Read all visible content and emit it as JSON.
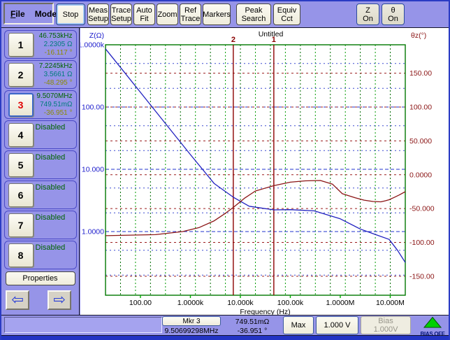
{
  "menubar": {
    "file": "File",
    "mode": "Mode"
  },
  "toolbar": {
    "buttons": [
      {
        "id": "stop",
        "lines": [
          "Stop"
        ],
        "x": 78,
        "w": 42,
        "focused": true
      },
      {
        "id": "meas-setup",
        "lines": [
          "Meas",
          "Setup"
        ],
        "x": 123,
        "w": 31
      },
      {
        "id": "trace-setup",
        "lines": [
          "Trace",
          "Setup"
        ],
        "x": 156,
        "w": 31
      },
      {
        "id": "auto-fit",
        "lines": [
          "Auto",
          "Fit"
        ],
        "x": 189,
        "w": 31
      },
      {
        "id": "zoom",
        "lines": [
          "Zoom"
        ],
        "x": 222,
        "w": 31
      },
      {
        "id": "ref-trace",
        "lines": [
          "Ref",
          "Trace"
        ],
        "x": 255,
        "w": 31
      },
      {
        "id": "markers",
        "lines": [
          "Markers"
        ],
        "x": 288,
        "w": 40
      },
      {
        "id": "peak-search",
        "lines": [
          "Peak",
          "Search"
        ],
        "x": 336,
        "w": 50
      },
      {
        "id": "equiv-cct",
        "lines": [
          "Equiv",
          "Cct"
        ],
        "x": 389,
        "w": 39
      }
    ],
    "trace_toggles": [
      {
        "id": "z-on",
        "lines": [
          "Z",
          "On"
        ],
        "x": 508,
        "w": 33
      },
      {
        "id": "theta-on",
        "lines": [
          "θ",
          "On"
        ],
        "x": 544,
        "w": 33
      }
    ]
  },
  "sidebar": {
    "markers": [
      {
        "num": "1",
        "active": false,
        "freq": "46.753kHz",
        "z": "2.2305 Ω",
        "theta": "-16.117 °"
      },
      {
        "num": "2",
        "active": false,
        "freq": "7.2245kHz",
        "z": "3.5661 Ω",
        "theta": "-48.295 °"
      },
      {
        "num": "3",
        "active": true,
        "freq": "9.5070MHz",
        "z": "749.51mΩ",
        "theta": "-36.951 °"
      },
      {
        "num": "4",
        "disabled": "Disabled"
      },
      {
        "num": "5",
        "disabled": "Disabled"
      },
      {
        "num": "6",
        "disabled": "Disabled"
      },
      {
        "num": "7",
        "disabled": "Disabled"
      },
      {
        "num": "8",
        "disabled": "Disabled"
      }
    ],
    "properties_label": "Properties"
  },
  "chart_data": {
    "type": "line",
    "title": "Untitled",
    "x_axis": {
      "label": "Frequency (Hz)",
      "scale": "log",
      "min": 20,
      "max": 20000000,
      "grid_divisions": 20,
      "ticks": [
        {
          "v": 100,
          "t": "100.00"
        },
        {
          "v": 1000,
          "t": "1.0000k"
        },
        {
          "v": 10000,
          "t": "10.000k"
        },
        {
          "v": 100000,
          "t": "100.00k"
        },
        {
          "v": 1000000,
          "t": "1.0000M"
        },
        {
          "v": 10000000,
          "t": "10.000M"
        }
      ]
    },
    "y_left": {
      "label": "Z(Ω)",
      "scale": "log",
      "min": 0.095,
      "max": 1000,
      "color": "#1a1acc",
      "major_ticks": [
        {
          "v": 1000,
          "t": "1.0000k"
        },
        {
          "v": 100,
          "t": "100.00"
        },
        {
          "v": 10,
          "t": "10.000"
        },
        {
          "v": 1,
          "t": "1.0000"
        }
      ],
      "minor_grid": [
        500,
        200,
        50,
        20,
        5,
        2,
        0.5,
        0.2
      ]
    },
    "y_right": {
      "label": "θz(°)",
      "scale": "linear",
      "min": -178,
      "max": 192,
      "color": "#8b1515",
      "major_ticks": [
        {
          "v": 150,
          "t": "150.00"
        },
        {
          "v": 100,
          "t": "100.00"
        },
        {
          "v": 50,
          "t": "50.000"
        },
        {
          "v": 0,
          "t": "0.0000"
        },
        {
          "v": -50,
          "t": "-50.000"
        },
        {
          "v": -100,
          "t": "-100.00"
        },
        {
          "v": -150,
          "t": "-150.00"
        }
      ]
    },
    "markers": [
      {
        "label": "2",
        "freq": 7224.5
      },
      {
        "label": "1",
        "freq": 46753
      }
    ],
    "series": [
      {
        "name": "Z",
        "axis": "left",
        "color": "#2020c0",
        "points": [
          [
            20,
            860
          ],
          [
            50,
            344
          ],
          [
            100,
            172
          ],
          [
            300,
            57.3
          ],
          [
            1000,
            17.2
          ],
          [
            3000,
            5.9
          ],
          [
            7224.5,
            3.5661
          ],
          [
            15000,
            2.55
          ],
          [
            46753,
            2.2305
          ],
          [
            100000,
            2.25
          ],
          [
            300000,
            2.15
          ],
          [
            1000000,
            1.6
          ],
          [
            2500000,
            1.1
          ],
          [
            5000000,
            0.9
          ],
          [
            9507000,
            0.7495
          ],
          [
            14000000,
            0.5
          ],
          [
            20000000,
            0.32
          ]
        ]
      },
      {
        "name": "theta-z",
        "axis": "right",
        "color": "#8b1515",
        "points": [
          [
            20,
            -90
          ],
          [
            200,
            -88.5
          ],
          [
            700,
            -84
          ],
          [
            1500,
            -78
          ],
          [
            3000,
            -68
          ],
          [
            5000,
            -57
          ],
          [
            7224.5,
            -48.295
          ],
          [
            12000,
            -35
          ],
          [
            20000,
            -24
          ],
          [
            46753,
            -16.117
          ],
          [
            100000,
            -11
          ],
          [
            200000,
            -9
          ],
          [
            400000,
            -8.5
          ],
          [
            700000,
            -14
          ],
          [
            1100000,
            -28
          ],
          [
            2000000,
            -34
          ],
          [
            3000000,
            -37.5
          ],
          [
            4500000,
            -39.5
          ],
          [
            6500000,
            -40
          ],
          [
            8000000,
            -38.5
          ],
          [
            9507000,
            -36.951
          ],
          [
            12000000,
            -33.5
          ],
          [
            15000000,
            -30
          ],
          [
            20000000,
            -25
          ]
        ]
      }
    ],
    "grid_colors": {
      "x_major": "#009a00",
      "x_minor": "#006a00",
      "border": "#007800"
    }
  },
  "bottom_bar": {
    "marker_button": "Mkr 3",
    "marker_freq": "9.50699298MHz",
    "value1": "749.51mΩ",
    "value2": "-36.951 °",
    "max_label": "Max",
    "level_label": "1.000 V",
    "bias_lines": [
      "Bias",
      "1.000V"
    ],
    "bias_status": "BIAS OFF",
    "bias_triangle_color": "#00d000"
  }
}
